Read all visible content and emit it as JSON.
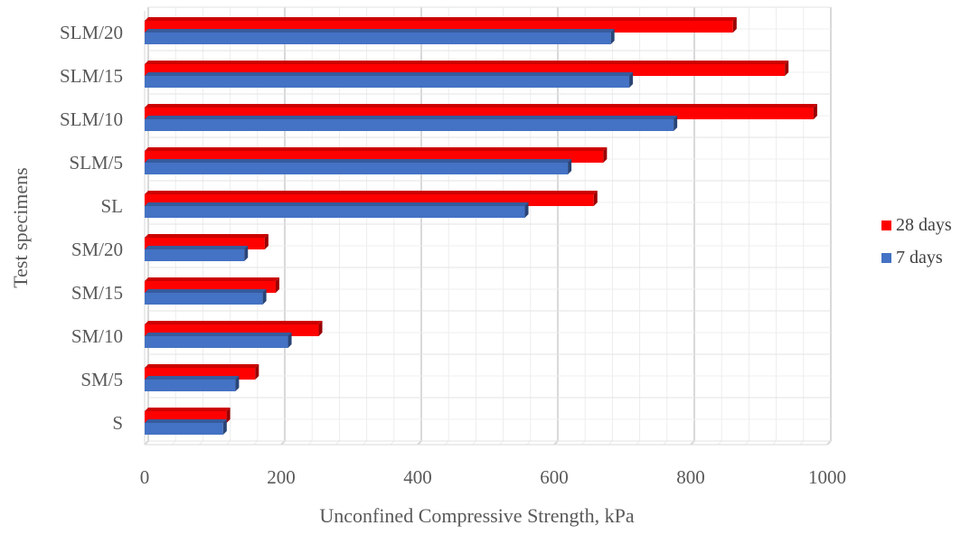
{
  "chart_data": {
    "type": "bar",
    "orientation": "horizontal",
    "xlabel": "Unconfined Compressive Strength, kPa",
    "ylabel": "Test specimens",
    "xlim": [
      0,
      1000
    ],
    "xticks": [
      "0",
      "200",
      "400",
      "600",
      "800",
      "1000"
    ],
    "grid": true,
    "legend_position": "right",
    "categories": [
      "S",
      "SM/5",
      "SM/10",
      "SM/15",
      "SM/20",
      "SL",
      "SLM/5",
      "SLM/10",
      "SLM/15",
      "SLM/20"
    ],
    "series": [
      {
        "name": "7 days",
        "color": "#4472C4",
        "values": [
          115,
          133,
          210,
          173,
          146,
          557,
          620,
          775,
          710,
          683
        ]
      },
      {
        "name": "28 days",
        "color": "#FF0000",
        "values": [
          120,
          162,
          255,
          192,
          176,
          658,
          672,
          980,
          938,
          862
        ]
      }
    ]
  },
  "legend": [
    {
      "label": "28 days",
      "color": "#FF0000"
    },
    {
      "label": "7 days",
      "color": "#4472C4"
    }
  ]
}
